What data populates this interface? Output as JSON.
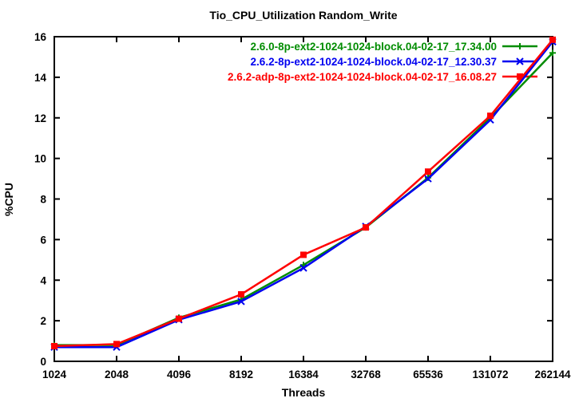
{
  "chart_data": {
    "type": "line",
    "title": "Tio_CPU_Utilization Random_Write",
    "xlabel": "Threads",
    "ylabel": "%CPU",
    "x_ticks": [
      "1024",
      "2048",
      "4096",
      "8192",
      "16384",
      "32768",
      "65536",
      "131072",
      "262144"
    ],
    "y_ticks": [
      0,
      2,
      4,
      6,
      8,
      10,
      12,
      14,
      16
    ],
    "ylim": [
      0,
      16
    ],
    "x_scale": "log2-evenly-spaced",
    "grid": false,
    "legend_position": "inside-top-right",
    "border_color": "#000000",
    "background_color": "#ffffff",
    "series": [
      {
        "name": "2.6.0-8p-ext2-1024-1024-block.04-02-17_17.34.00",
        "color": "#008C00",
        "marker": "plus",
        "values": [
          0.8,
          0.8,
          2.15,
          3.05,
          4.75,
          6.6,
          9.05,
          12.0,
          15.2
        ]
      },
      {
        "name": "2.6.2-8p-ext2-1024-1024-block.04-02-17_12.30.37",
        "color": "#0000F0",
        "marker": "cross",
        "values": [
          0.7,
          0.7,
          2.05,
          2.95,
          4.6,
          6.65,
          9.0,
          11.9,
          15.75
        ]
      },
      {
        "name": "2.6.2-adp-8p-ext2-1024-1024-block.04-02-17_16.08.27",
        "color": "#FF0000",
        "marker": "square",
        "values": [
          0.75,
          0.85,
          2.1,
          3.3,
          5.25,
          6.6,
          9.35,
          12.1,
          15.85
        ]
      }
    ]
  }
}
